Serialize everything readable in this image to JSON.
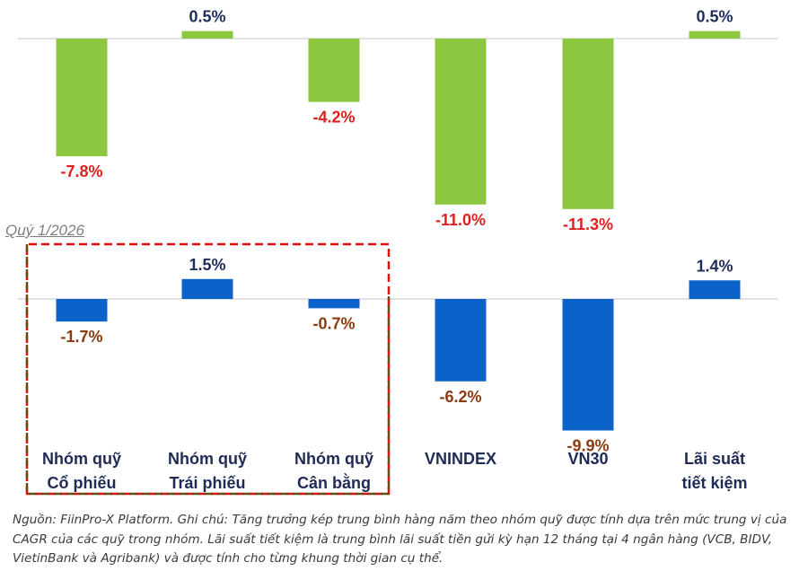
{
  "chart_data": [
    {
      "type": "bar",
      "categories": [
        "Nhóm quỹ\nCổ phiếu",
        "Nhóm quỹ\nTrái phiếu",
        "Nhóm quỹ\nCân bằng",
        "VNINDEX",
        "VN30",
        "Lãi suất\ntiết kiệm"
      ],
      "values": [
        -7.8,
        0.5,
        -4.2,
        -11.0,
        -11.3,
        0.5
      ],
      "labels": [
        "-7.8%",
        "0.5%",
        "-4.2%",
        "-11.0%",
        "-11.3%",
        "0.5%"
      ],
      "bar_color": "#8dc63f",
      "positive_label_color": "#1f2d5a",
      "negative_label_color": "#e02020"
    },
    {
      "type": "bar",
      "title": "Quý 1/2026",
      "categories": [
        "Nhóm quỹ\nCổ phiếu",
        "Nhóm quỹ\nTrái phiếu",
        "Nhóm quỹ\nCân bằng",
        "VNINDEX",
        "VN30",
        "Lãi suất\ntiết kiệm"
      ],
      "values": [
        -1.7,
        1.5,
        -0.7,
        -6.2,
        -9.9,
        1.4
      ],
      "labels": [
        "-1.7%",
        "1.5%",
        "-0.7%",
        "-6.2%",
        "-9.9%",
        "1.4%"
      ],
      "bar_color": "#0b63c9",
      "positive_label_color": "#1f2d5a",
      "negative_label_color": "#8b3a10",
      "highlight": "Nhóm quỹ (dashed box)"
    }
  ],
  "footnote": "Nguồn: FiinPro-X Platform. Ghi chú: Tăng trưởng kép trung bình hàng năm theo nhóm quỹ được tính dựa trên mức trung vị của CAGR của các quỹ trong nhóm. Lãi suất tiết kiệm là trung bình lãi suất tiền gửi kỳ hạn 12 tháng tại 4 ngân hàng (VCB, BIDV, VietinBank và Agribank) và được tính cho từng khung thời gian cụ thể."
}
